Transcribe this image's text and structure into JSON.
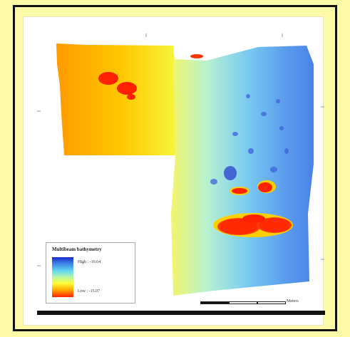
{
  "map": {
    "grid_labels": {
      "top": [
        "",
        ""
      ],
      "left": [
        "",
        ""
      ],
      "right": [
        "",
        ""
      ],
      "bottom": [
        "",
        ""
      ]
    }
  },
  "legend": {
    "title": "Multibeam bathymetry",
    "high_label": "High : -10.64",
    "low_label": "Low : -15.07",
    "ramp_colors": [
      "#1a2ccc",
      "#3f8fe6",
      "#66d9f0",
      "#b8f6a8",
      "#ffff3a",
      "#ffaa00",
      "#ff2200"
    ]
  },
  "scalebar": {
    "unit": "Meters",
    "labels": [
      "",
      "",
      ""
    ]
  }
}
